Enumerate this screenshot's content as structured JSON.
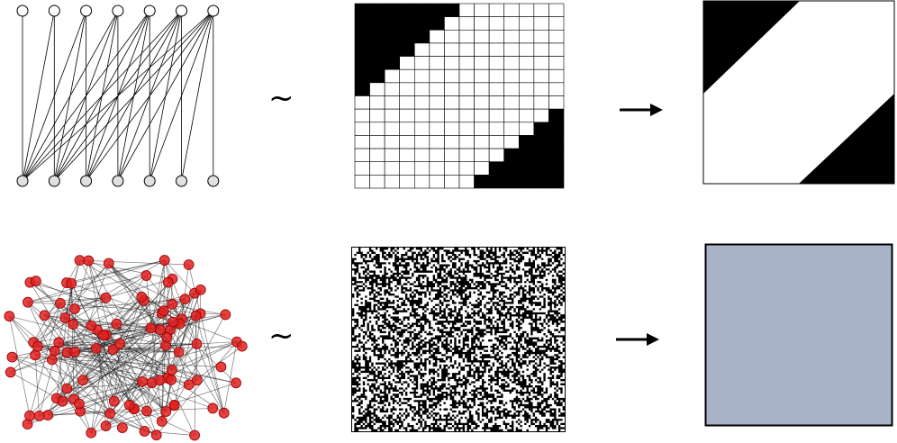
{
  "rows": [
    {
      "graph": {
        "kind": "bipartite",
        "top_nodes": 7,
        "bottom_nodes": 7,
        "node_fill": "#ffffff",
        "bottom_node_fill": "#e0e0e0",
        "edge_color": "#000000"
      },
      "equivalence_symbol": "~",
      "adjacency_matrix": {
        "kind": "staircase",
        "rows": 14,
        "cols": 14,
        "grid_color": "#000000",
        "fill_color": "#000000"
      },
      "limit_arrow": "→",
      "limit_object": {
        "kind": "graphon-staircase",
        "fill_color": "#000000",
        "background": "#ffffff"
      }
    },
    {
      "graph": {
        "kind": "random",
        "node_count": 100,
        "node_fill": "#e02020",
        "edge_color": "#222222"
      },
      "equivalence_symbol": "~",
      "adjacency_matrix": {
        "kind": "random-noise",
        "fill_color": "#000000"
      },
      "limit_arrow": "→",
      "limit_object": {
        "kind": "constant-graphon",
        "fill_color": "#aab4c8",
        "border_color": "#000000"
      }
    }
  ]
}
